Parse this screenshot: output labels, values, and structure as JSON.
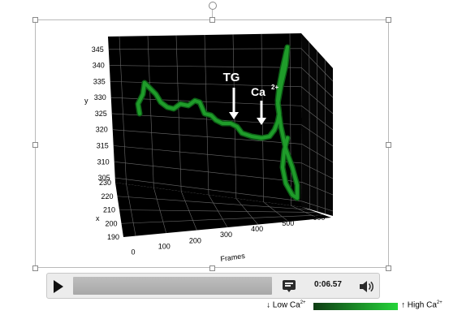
{
  "chart_data": {
    "type": "line3d",
    "title": "",
    "xlabel": "Frames",
    "ylabel": "y",
    "zlabel": "x",
    "x_ticks": [
      "0",
      "100",
      "200",
      "300",
      "400",
      "500",
      "600"
    ],
    "y_ticks": [
      "305",
      "310",
      "315",
      "320",
      "325",
      "330",
      "335",
      "340",
      "345"
    ],
    "z_ticks": [
      "190",
      "200",
      "210",
      "220",
      "230"
    ],
    "annotations": [
      {
        "text": "TG",
        "sup": ""
      },
      {
        "text": "Ca",
        "sup": "2+"
      }
    ],
    "series": [
      {
        "color": "#1f9c2a"
      }
    ]
  },
  "player": {
    "time": "0:06.57",
    "play_icon": "play-icon",
    "caption_icon": "captions-icon",
    "volume_icon": "volume-icon"
  },
  "legend": {
    "low_label": "↓ Low Ca",
    "low_sup": "2+",
    "high_label": "↑ High Ca",
    "high_sup": "2+",
    "colors": [
      "#0f3d14",
      "#25d43a"
    ]
  }
}
